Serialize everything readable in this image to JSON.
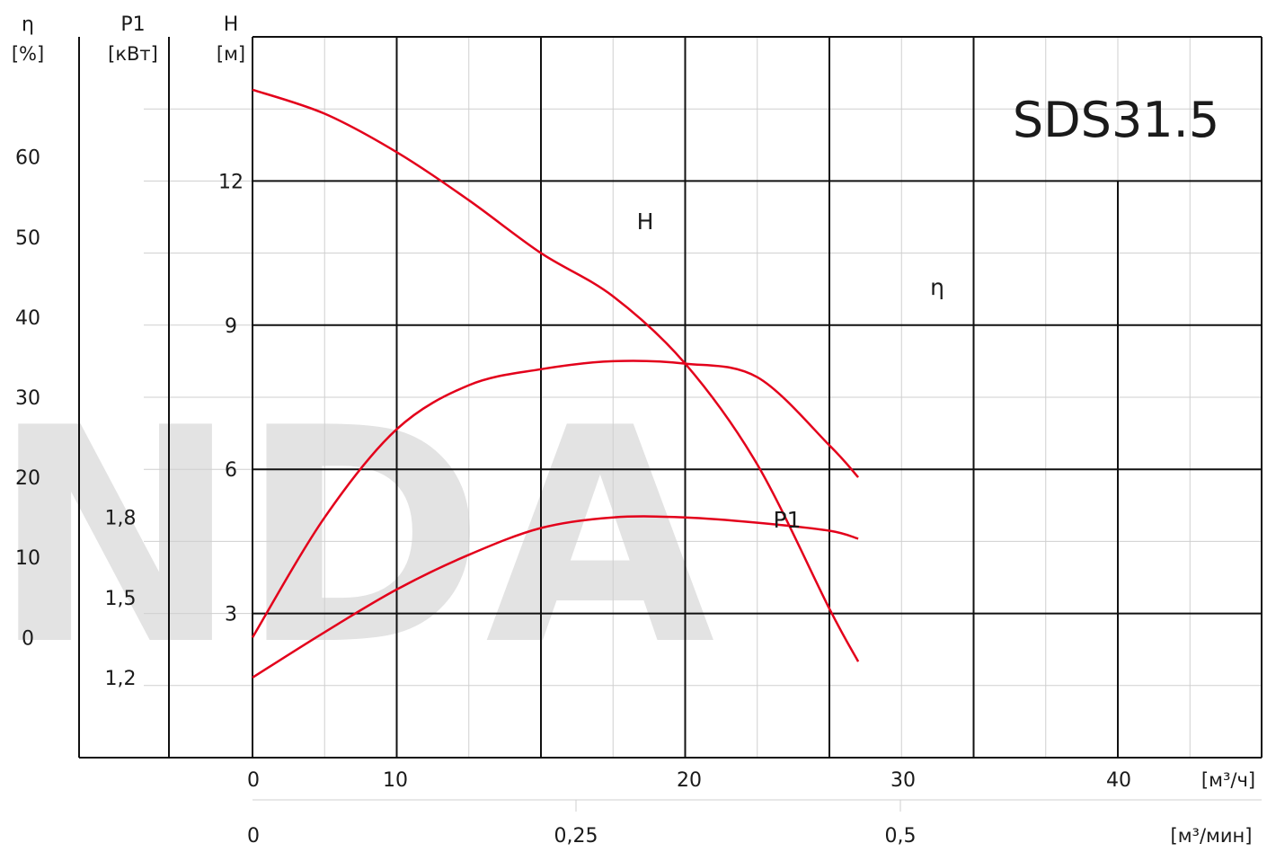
{
  "watermark": "NDA",
  "chart_data": {
    "type": "line",
    "title": "SDS31.5",
    "xlabel": "[м³/ч]",
    "xlabel_secondary": "[м³/мин]",
    "x_ticks": [
      "0",
      "10",
      "20",
      "30",
      "40"
    ],
    "x_secondary_ticks": [
      "0",
      "0,25",
      "0,5"
    ],
    "xlim": [
      0,
      47
    ],
    "axes": {
      "head": {
        "label": "H",
        "unit": "[м]",
        "ticks": [
          "3",
          "6",
          "9",
          "12"
        ],
        "lim": [
          0,
          15
        ]
      },
      "power": {
        "label": "P1",
        "unit": "[кВт]",
        "ticks": [
          "1,2",
          "1,5",
          "1,8"
        ],
        "lim": [
          0.9,
          3.6
        ]
      },
      "efficiency": {
        "label": "η",
        "unit": "[%]",
        "ticks": [
          "0",
          "10",
          "20",
          "30",
          "40",
          "50",
          "60"
        ],
        "lim": [
          -15,
          75
        ]
      }
    },
    "grid": true,
    "series": [
      {
        "name": "H",
        "axis": "head",
        "color": "#e3001b",
        "x": [
          0,
          5,
          10,
          15,
          20,
          25,
          30,
          35,
          40,
          42
        ],
        "y": [
          13.9,
          13.4,
          12.6,
          11.6,
          10.5,
          9.6,
          8.2,
          6.1,
          3.1,
          2.0
        ]
      },
      {
        "name": "η",
        "axis": "efficiency",
        "color": "#e3001b",
        "x": [
          0,
          5,
          10,
          15,
          20,
          25,
          30,
          35,
          40,
          42
        ],
        "y": [
          0,
          15,
          26,
          31.5,
          33.5,
          34.5,
          34.2,
          32.5,
          24,
          20
        ]
      },
      {
        "name": "P1",
        "axis": "power",
        "color": "#e3001b",
        "x": [
          0,
          5,
          10,
          15,
          20,
          25,
          30,
          35,
          40,
          42
        ],
        "y": [
          1.2,
          1.37,
          1.53,
          1.66,
          1.76,
          1.8,
          1.8,
          1.78,
          1.75,
          1.72
        ]
      }
    ]
  }
}
